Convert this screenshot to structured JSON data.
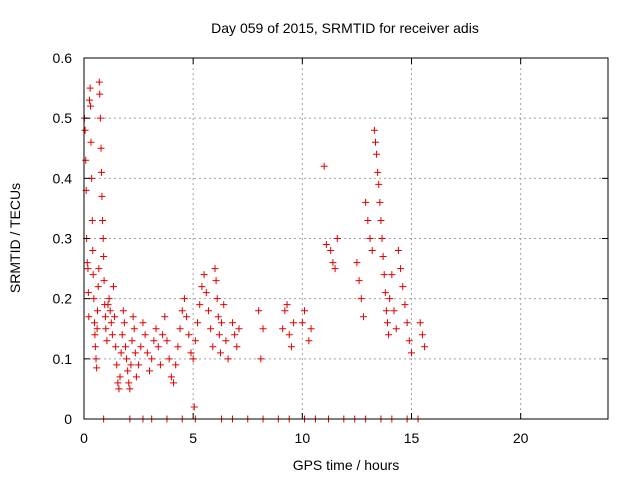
{
  "chart_data": {
    "type": "scatter",
    "title": "Day 059 of 2015, SRMTID for receiver adis",
    "xlabel": "GPS time / hours",
    "ylabel": "SRMTID / TECUs",
    "xlim": [
      0,
      24
    ],
    "ylim": [
      0,
      0.6
    ],
    "xticks": [
      0,
      5,
      10,
      15,
      20
    ],
    "xtick_labels": [
      "0",
      "5",
      "10",
      "15",
      "20"
    ],
    "yticks": [
      0,
      0.1,
      0.2,
      0.3,
      0.4,
      0.5,
      0.6
    ],
    "ytick_labels": [
      "0",
      "0.1",
      "0.2",
      "0.3",
      "0.4",
      "0.5",
      "0.6"
    ],
    "grid": true,
    "marker": "+",
    "color": "#e00000",
    "series": [
      {
        "name": "SRMTID",
        "points": [
          [
            0.02,
            0.5
          ],
          [
            0.05,
            0.48
          ],
          [
            0.08,
            0.43
          ],
          [
            0.1,
            0.38
          ],
          [
            0.12,
            0.3
          ],
          [
            0.15,
            0.26
          ],
          [
            0.18,
            0.25
          ],
          [
            0.2,
            0.21
          ],
          [
            0.22,
            0.17
          ],
          [
            0.25,
            0.53
          ],
          [
            0.28,
            0.55
          ],
          [
            0.3,
            0.52
          ],
          [
            0.32,
            0.46
          ],
          [
            0.35,
            0.4
          ],
          [
            0.38,
            0.33
          ],
          [
            0.4,
            0.28
          ],
          [
            0.42,
            0.24
          ],
          [
            0.45,
            0.2
          ],
          [
            0.48,
            0.16
          ],
          [
            0.5,
            0.14
          ],
          [
            0.52,
            0.12
          ],
          [
            0.55,
            0.1
          ],
          [
            0.58,
            0.085
          ],
          [
            0.6,
            0.15
          ],
          [
            0.62,
            0.18
          ],
          [
            0.65,
            0.22
          ],
          [
            0.68,
            0.25
          ],
          [
            0.7,
            0.56
          ],
          [
            0.72,
            0.54
          ],
          [
            0.75,
            0.5
          ],
          [
            0.78,
            0.45
          ],
          [
            0.8,
            0.41
          ],
          [
            0.82,
            0.37
          ],
          [
            0.85,
            0.33
          ],
          [
            0.88,
            0.3
          ],
          [
            0.9,
            0.27
          ],
          [
            0.92,
            0.23
          ],
          [
            0.95,
            0.19
          ],
          [
            0.98,
            0.17
          ],
          [
            1.0,
            0.15
          ],
          [
            1.05,
            0.13
          ],
          [
            1.1,
            0.19
          ],
          [
            1.15,
            0.2
          ],
          [
            1.2,
            0.18
          ],
          [
            1.25,
            0.16
          ],
          [
            1.3,
            0.14
          ],
          [
            1.35,
            0.22
          ],
          [
            1.4,
            0.17
          ],
          [
            1.45,
            0.12
          ],
          [
            1.5,
            0.09
          ],
          [
            1.55,
            0.06
          ],
          [
            1.6,
            0.05
          ],
          [
            1.65,
            0.07
          ],
          [
            1.7,
            0.11
          ],
          [
            1.75,
            0.14
          ],
          [
            1.8,
            0.18
          ],
          [
            1.85,
            0.16
          ],
          [
            1.9,
            0.12
          ],
          [
            1.95,
            0.1
          ],
          [
            2.0,
            0.08
          ],
          [
            2.05,
            0.06
          ],
          [
            2.1,
            0.05
          ],
          [
            2.15,
            0.09
          ],
          [
            2.2,
            0.13
          ],
          [
            2.25,
            0.17
          ],
          [
            2.3,
            0.15
          ],
          [
            2.35,
            0.11
          ],
          [
            2.4,
            0.07
          ],
          [
            2.5,
            0.09
          ],
          [
            2.6,
            0.12
          ],
          [
            2.7,
            0.16
          ],
          [
            2.8,
            0.14
          ],
          [
            2.9,
            0.11
          ],
          [
            3.0,
            0.08
          ],
          [
            3.1,
            0.1
          ],
          [
            3.2,
            0.13
          ],
          [
            3.3,
            0.15
          ],
          [
            3.4,
            0.12
          ],
          [
            3.5,
            0.09
          ],
          [
            3.6,
            0.14
          ],
          [
            3.7,
            0.17
          ],
          [
            3.8,
            0.13
          ],
          [
            3.9,
            0.1
          ],
          [
            4.0,
            0.07
          ],
          [
            4.1,
            0.06
          ],
          [
            4.2,
            0.09
          ],
          [
            4.3,
            0.12
          ],
          [
            4.4,
            0.15
          ],
          [
            4.5,
            0.18
          ],
          [
            4.6,
            0.2
          ],
          [
            4.7,
            0.17
          ],
          [
            4.8,
            0.14
          ],
          [
            4.9,
            0.11
          ],
          [
            5.0,
            0.1
          ],
          [
            5.1,
            0.13
          ],
          [
            5.2,
            0.16
          ],
          [
            5.3,
            0.19
          ],
          [
            5.4,
            0.22
          ],
          [
            5.5,
            0.24
          ],
          [
            5.6,
            0.21
          ],
          [
            5.7,
            0.18
          ],
          [
            5.8,
            0.15
          ],
          [
            5.9,
            0.12
          ],
          [
            6.0,
            0.25
          ],
          [
            6.05,
            0.23
          ],
          [
            6.1,
            0.2
          ],
          [
            6.15,
            0.17
          ],
          [
            6.2,
            0.14
          ],
          [
            6.25,
            0.11
          ],
          [
            6.3,
            0.16
          ],
          [
            6.4,
            0.19
          ],
          [
            6.5,
            0.13
          ],
          [
            6.6,
            0.1
          ],
          [
            6.8,
            0.16
          ],
          [
            6.9,
            0.14
          ],
          [
            7.0,
            0.12
          ],
          [
            7.1,
            0.15
          ],
          [
            5.05,
            0.02
          ],
          [
            8.0,
            0.18
          ],
          [
            8.1,
            0.1
          ],
          [
            8.2,
            0.15
          ],
          [
            9.1,
            0.15
          ],
          [
            9.2,
            0.18
          ],
          [
            9.3,
            0.19
          ],
          [
            9.4,
            0.14
          ],
          [
            9.5,
            0.12
          ],
          [
            9.6,
            0.16
          ],
          [
            10.0,
            0.16
          ],
          [
            10.1,
            0.18
          ],
          [
            10.3,
            0.13
          ],
          [
            10.4,
            0.15
          ],
          [
            11.0,
            0.42
          ],
          [
            11.1,
            0.29
          ],
          [
            11.3,
            0.28
          ],
          [
            11.4,
            0.26
          ],
          [
            11.5,
            0.25
          ],
          [
            11.6,
            0.3
          ],
          [
            12.5,
            0.26
          ],
          [
            12.6,
            0.23
          ],
          [
            12.7,
            0.2
          ],
          [
            12.8,
            0.17
          ],
          [
            12.9,
            0.36
          ],
          [
            13.0,
            0.33
          ],
          [
            13.1,
            0.3
          ],
          [
            13.2,
            0.28
          ],
          [
            13.3,
            0.48
          ],
          [
            13.35,
            0.46
          ],
          [
            13.4,
            0.44
          ],
          [
            13.45,
            0.41
          ],
          [
            13.5,
            0.39
          ],
          [
            13.55,
            0.36
          ],
          [
            13.6,
            0.33
          ],
          [
            13.65,
            0.3
          ],
          [
            13.7,
            0.27
          ],
          [
            13.75,
            0.24
          ],
          [
            13.8,
            0.21
          ],
          [
            13.85,
            0.18
          ],
          [
            13.9,
            0.16
          ],
          [
            13.95,
            0.14
          ],
          [
            14.0,
            0.2
          ],
          [
            14.1,
            0.24
          ],
          [
            14.2,
            0.18
          ],
          [
            14.3,
            0.15
          ],
          [
            14.4,
            0.28
          ],
          [
            14.5,
            0.25
          ],
          [
            14.6,
            0.22
          ],
          [
            14.7,
            0.19
          ],
          [
            14.8,
            0.16
          ],
          [
            14.9,
            0.13
          ],
          [
            15.0,
            0.11
          ],
          [
            15.4,
            0.16
          ],
          [
            15.5,
            0.14
          ],
          [
            15.6,
            0.12
          ],
          [
            0.9,
            0
          ],
          [
            2.1,
            0
          ],
          [
            2.7,
            0
          ],
          [
            3.1,
            0
          ],
          [
            3.8,
            0
          ],
          [
            4.5,
            0
          ],
          [
            5.1,
            0
          ],
          [
            6.3,
            0
          ],
          [
            6.8,
            0
          ],
          [
            7.5,
            0
          ],
          [
            8.2,
            0
          ],
          [
            8.9,
            0
          ],
          [
            9.4,
            0
          ],
          [
            10.1,
            0
          ],
          [
            10.6,
            0
          ],
          [
            11.2,
            0
          ],
          [
            11.9,
            0
          ],
          [
            12.4,
            0
          ],
          [
            12.9,
            0
          ],
          [
            13.6,
            0
          ],
          [
            14.1,
            0
          ],
          [
            14.8,
            0
          ],
          [
            15.3,
            0
          ]
        ]
      }
    ]
  }
}
